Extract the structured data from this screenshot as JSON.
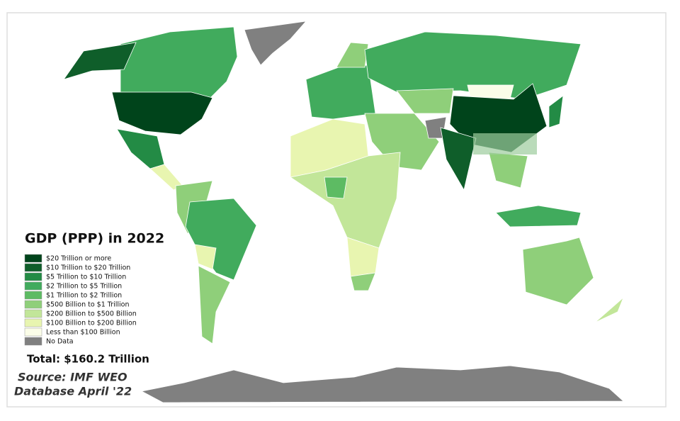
{
  "title": "GDP (PPP) in 2022",
  "legend": [
    {
      "label": "$20 Trillion or more",
      "color": "#00441b"
    },
    {
      "label": "$10 Trillion to $20 Trillion",
      "color": "#0f5e2a"
    },
    {
      "label": "$5 Trillion to $10 Trillion",
      "color": "#238b45"
    },
    {
      "label": "$2 Trillion to $5 Trillion",
      "color": "#41ab5d"
    },
    {
      "label": "$1 Trillion to $2 Trillion",
      "color": "#5dbb63"
    },
    {
      "label": "$500 Billion to $1 Trillion",
      "color": "#8fcf7a"
    },
    {
      "label": "$200 Billion to $500 Billion",
      "color": "#c2e699"
    },
    {
      "label": "$100 Billion to $200 Billion",
      "color": "#e8f5b0"
    },
    {
      "label": "Less than $100 Billion",
      "color": "#fbfde8"
    },
    {
      "label": "No Data",
      "color": "#808080"
    }
  ],
  "total": "Total: $160.2 Trillion",
  "source": [
    "Source: IMF WEO",
    "Database April '22"
  ]
}
